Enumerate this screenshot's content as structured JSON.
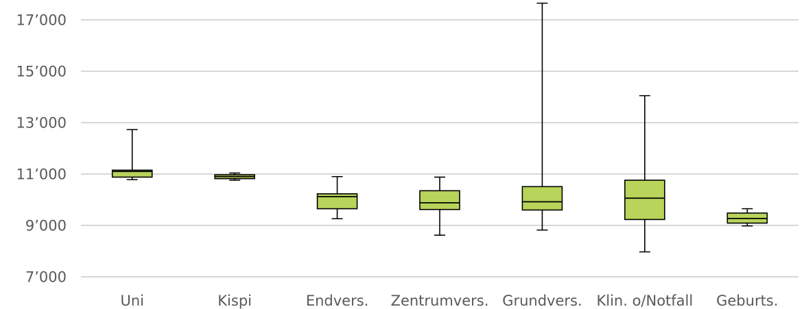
{
  "chart_data": {
    "type": "boxplot",
    "title": "",
    "xlabel": "",
    "ylabel": "",
    "ylim": [
      7000,
      17600
    ],
    "grid": true,
    "y_ticks": [
      7000,
      9000,
      11000,
      13000,
      15000,
      17000
    ],
    "y_tick_labels": [
      "7’000",
      "9’000",
      "11’000",
      "13’000",
      "15’000",
      "17’000"
    ],
    "categories": [
      "Uni",
      "Kispi",
      "Endvers.",
      "Zentrumvers.",
      "Grundvers.",
      "Klin. o/Notfall",
      "Geburts."
    ],
    "boxes": [
      {
        "category": "Uni",
        "min": 10780,
        "q1": 10880,
        "median": 11100,
        "q3": 11150,
        "max": 12730
      },
      {
        "category": "Kispi",
        "min": 10760,
        "q1": 10820,
        "median": 10900,
        "q3": 10970,
        "max": 11040
      },
      {
        "category": "Endvers.",
        "min": 9260,
        "q1": 9650,
        "median": 10120,
        "q3": 10230,
        "max": 10900
      },
      {
        "category": "Zentrumvers.",
        "min": 8620,
        "q1": 9620,
        "median": 9880,
        "q3": 10350,
        "max": 10880
      },
      {
        "category": "Grundvers.",
        "min": 8820,
        "q1": 9600,
        "median": 9920,
        "q3": 10510,
        "max": 17650
      },
      {
        "category": "Klin. o/Notfall",
        "min": 7970,
        "q1": 9230,
        "median": 10060,
        "q3": 10760,
        "max": 14050
      },
      {
        "category": "Geburts.",
        "min": 8980,
        "q1": 9090,
        "median": 9270,
        "q3": 9480,
        "max": 9650
      }
    ],
    "colors": {
      "box_fill": "#b8d45a",
      "box_stroke": "#000000",
      "grid": "#bfbfbf",
      "tick_text": "#595959"
    }
  }
}
